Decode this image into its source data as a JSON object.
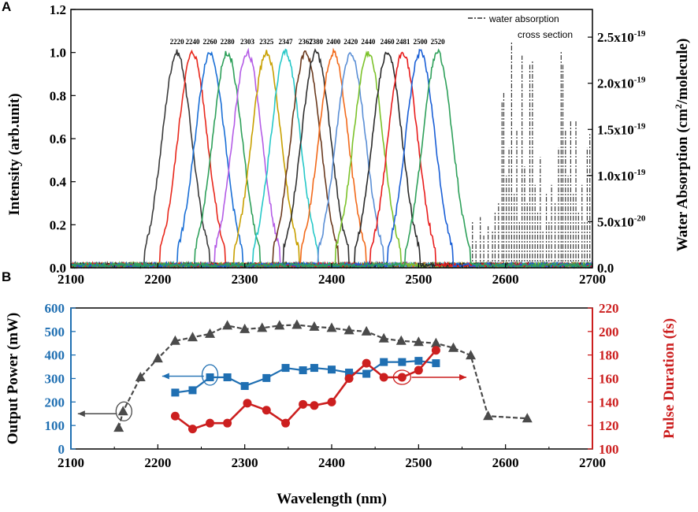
{
  "chart_data": [
    {
      "panel": "A",
      "type": "line",
      "xlabel": "",
      "ylabel": "Intensity (arb.unit)",
      "y2label_main": "Water Absorption (cm",
      "y2label_sup": "2",
      "y2label_end": "/molecule)",
      "xlim": [
        2100,
        2700
      ],
      "ylim": [
        0,
        1.2
      ],
      "x_ticks": [
        "2100",
        "2200",
        "2300",
        "2400",
        "2500",
        "2600",
        "2700"
      ],
      "y_ticks": [
        "0.0",
        "0.2",
        "0.4",
        "0.6",
        "0.8",
        "1.0",
        "1.2"
      ],
      "y2_ticks": [
        {
          "mant": "0.0",
          "exp": ""
        },
        {
          "mant": "5.0x10",
          "exp": "-20"
        },
        {
          "mant": "1.0x10",
          "exp": "-19"
        },
        {
          "mant": "1.5x10",
          "exp": "-19"
        },
        {
          "mant": "2.0x10",
          "exp": "-19"
        },
        {
          "mant": "2.5x10",
          "exp": "-19"
        }
      ],
      "y2lim": [
        0,
        2.8e-19
      ],
      "legend": {
        "line1": "water absorption",
        "line2": "cross section",
        "placement": "top-right"
      },
      "series": [
        {
          "name": "2220",
          "center": 2222,
          "color": "#3a3a3a"
        },
        {
          "name": "2240",
          "center": 2240,
          "color": "#e8281c"
        },
        {
          "name": "2260",
          "center": 2260,
          "color": "#1a6fd6"
        },
        {
          "name": "2280",
          "center": 2280,
          "color": "#2ea05a"
        },
        {
          "name": "2303",
          "center": 2303,
          "color": "#b45ce6"
        },
        {
          "name": "2325",
          "center": 2325,
          "color": "#c8a000"
        },
        {
          "name": "2347",
          "center": 2347,
          "color": "#26c8c8"
        },
        {
          "name": "2367",
          "center": 2370,
          "color": "#6b3a1e"
        },
        {
          "name": "2380",
          "center": 2382,
          "color": "#303030"
        },
        {
          "name": "2400",
          "center": 2402,
          "color": "#f26a1b"
        },
        {
          "name": "2420",
          "center": 2422,
          "color": "#5b8fd6"
        },
        {
          "name": "2440",
          "center": 2442,
          "color": "#7cc22a"
        },
        {
          "name": "2460",
          "center": 2464,
          "color": "#2a2a2a"
        },
        {
          "name": "2481",
          "center": 2482,
          "color": "#e81c1c"
        },
        {
          "name": "2500",
          "center": 2502,
          "color": "#1a5fd6"
        },
        {
          "name": "2520",
          "center": 2522,
          "color": "#2ea05a"
        }
      ],
      "fwhm_nm": 40,
      "water_lines": [
        {
          "x": 2562,
          "y": 5e-20
        },
        {
          "x": 2566,
          "y": 3e-20
        },
        {
          "x": 2571,
          "y": 5.5e-20
        },
        {
          "x": 2575,
          "y": 3.5e-20
        },
        {
          "x": 2580,
          "y": 4.5e-20
        },
        {
          "x": 2585,
          "y": 4e-20
        },
        {
          "x": 2588,
          "y": 6e-20
        },
        {
          "x": 2592,
          "y": 7e-20
        },
        {
          "x": 2596,
          "y": 1.8e-19
        },
        {
          "x": 2598,
          "y": 1.9e-19
        },
        {
          "x": 2601,
          "y": 1e-19
        },
        {
          "x": 2604,
          "y": 1.3e-19
        },
        {
          "x": 2607,
          "y": 2.45e-19
        },
        {
          "x": 2610,
          "y": 8e-20
        },
        {
          "x": 2613,
          "y": 1.5e-19
        },
        {
          "x": 2616,
          "y": 5e-20
        },
        {
          "x": 2619,
          "y": 2.3e-19
        },
        {
          "x": 2622,
          "y": 1.1e-19
        },
        {
          "x": 2625,
          "y": 7e-20
        },
        {
          "x": 2628,
          "y": 2.2e-19
        },
        {
          "x": 2631,
          "y": 2.25e-19
        },
        {
          "x": 2634,
          "y": 9e-20
        },
        {
          "x": 2637,
          "y": 6e-20
        },
        {
          "x": 2640,
          "y": 1.2e-19
        },
        {
          "x": 2643,
          "y": 4e-20
        },
        {
          "x": 2647,
          "y": 8e-20
        },
        {
          "x": 2650,
          "y": 5e-20
        },
        {
          "x": 2653,
          "y": 9e-20
        },
        {
          "x": 2657,
          "y": 7e-20
        },
        {
          "x": 2661,
          "y": 1.3e-19
        },
        {
          "x": 2664,
          "y": 2.35e-19
        },
        {
          "x": 2666,
          "y": 2.2e-19
        },
        {
          "x": 2669,
          "y": 1.5e-19
        },
        {
          "x": 2672,
          "y": 1e-19
        },
        {
          "x": 2675,
          "y": 1.6e-19
        },
        {
          "x": 2678,
          "y": 8e-20
        },
        {
          "x": 2681,
          "y": 1.6e-19
        },
        {
          "x": 2684,
          "y": 6e-20
        },
        {
          "x": 2688,
          "y": 9e-20
        },
        {
          "x": 2691,
          "y": 5e-20
        },
        {
          "x": 2694,
          "y": 1.3e-19
        },
        {
          "x": 2697,
          "y": 1.45e-19
        }
      ]
    },
    {
      "panel": "B",
      "type": "line",
      "xlabel": "Wavelength (nm)",
      "ylabel": "Output Power (mW)",
      "y2label": "Pulse Duration (fs)",
      "xlim": [
        2100,
        2700
      ],
      "ylim": [
        0,
        600
      ],
      "y2lim": [
        100,
        220
      ],
      "x_ticks": [
        "2100",
        "2200",
        "2300",
        "2400",
        "2500",
        "2600",
        "2700"
      ],
      "y_ticks": [
        "0",
        "100",
        "200",
        "300",
        "400",
        "500",
        "600"
      ],
      "y2_ticks": [
        "100",
        "120",
        "140",
        "160",
        "180",
        "200",
        "220"
      ],
      "series": [
        {
          "name": "Output Power (triangles)",
          "color": "#4a4a4a",
          "x": [
            2155,
            2160,
            2180,
            2200,
            2220,
            2240,
            2260,
            2280,
            2300,
            2320,
            2340,
            2360,
            2380,
            2400,
            2420,
            2440,
            2460,
            2480,
            2500,
            2520,
            2540,
            2560,
            2580,
            2625
          ],
          "values": [
            90,
            160,
            305,
            385,
            460,
            475,
            490,
            525,
            510,
            515,
            525,
            528,
            520,
            515,
            505,
            500,
            470,
            460,
            455,
            450,
            430,
            398,
            140,
            130
          ]
        },
        {
          "name": "Output Power (squares)",
          "color": "#1f6fb2",
          "x": [
            2220,
            2240,
            2260,
            2280,
            2300,
            2325,
            2347,
            2367,
            2380,
            2400,
            2420,
            2440,
            2460,
            2481,
            2500,
            2520
          ],
          "values": [
            240,
            250,
            305,
            305,
            268,
            302,
            345,
            335,
            345,
            338,
            325,
            320,
            370,
            370,
            375,
            365
          ]
        },
        {
          "name": "Pulse Duration",
          "axis": "right",
          "color": "#cc1f1f",
          "x": [
            2220,
            2240,
            2260,
            2280,
            2303,
            2325,
            2347,
            2367,
            2380,
            2400,
            2420,
            2440,
            2460,
            2481,
            2500,
            2520
          ],
          "values": [
            128,
            117,
            122,
            122,
            139,
            133,
            122,
            138,
            137,
            140,
            160,
            173,
            161,
            161,
            167,
            184
          ]
        }
      ],
      "annotations": [
        "arrow-left at 2160",
        "arrow-left at 2260",
        "arrow-right at 2480"
      ]
    }
  ]
}
